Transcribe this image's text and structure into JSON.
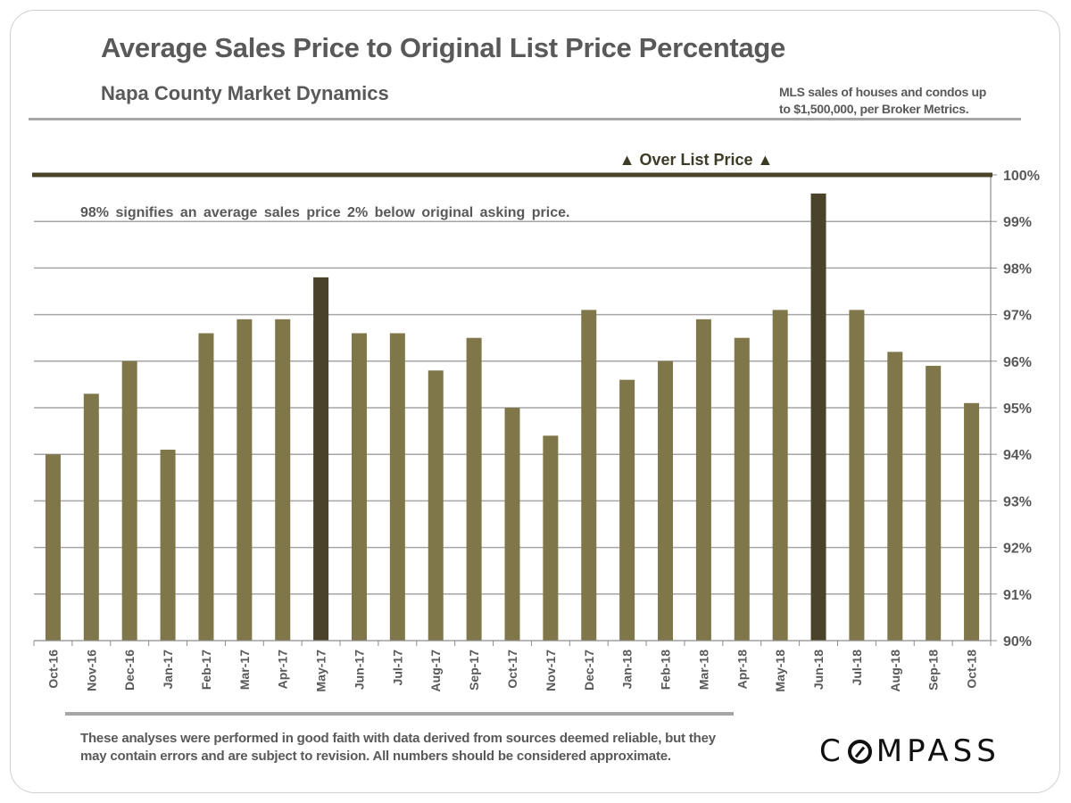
{
  "header": {
    "title": "Average Sales Price to Original List Price Percentage",
    "subtitle": "Napa County Market Dynamics",
    "source_line1": "MLS sales of houses and condos up",
    "source_line2": "to $1,500,000, per Broker Metrics."
  },
  "footer": {
    "disclaimer": "These analyses were performed in good faith with data derived from sources deemed reliable, but they may contain errors and are subject to revision. All numbers should be considered  approximate.",
    "logo_text_before": "C",
    "logo_text_after": "MPASS",
    "logo_icon": "compass-o-icon"
  },
  "colors": {
    "bar": "#7f774a",
    "bar_highlight": "#4a4329",
    "threshold_line": "#4a4329",
    "grid": "#a6a6a6",
    "text": "#595959"
  },
  "chart_data": {
    "type": "bar",
    "title": "Average Sales Price to Original List Price Percentage",
    "subtitle": "Napa County Market Dynamics",
    "xlabel": "",
    "ylabel": "",
    "ylim": [
      90,
      100
    ],
    "y_ticks": [
      90,
      91,
      92,
      93,
      94,
      95,
      96,
      97,
      98,
      99,
      100
    ],
    "y_tick_labels": [
      "90%",
      "91%",
      "92%",
      "93%",
      "94%",
      "95%",
      "96%",
      "97%",
      "98%",
      "99%",
      "100%"
    ],
    "y_axis_side": "right",
    "grid": true,
    "categories": [
      "Oct-16",
      "Nov-16",
      "Dec-16",
      "Jan-17",
      "Feb-17",
      "Mar-17",
      "Apr-17",
      "May-17",
      "Jun-17",
      "Jul-17",
      "Aug-17",
      "Sep-17",
      "Oct-17",
      "Nov-17",
      "Dec-17",
      "Jan-18",
      "Feb-18",
      "Mar-18",
      "Apr-18",
      "May-18",
      "Jun-18",
      "Jul-18",
      "Aug-18",
      "Sep-18",
      "Oct-18"
    ],
    "values": [
      94.0,
      95.3,
      96.0,
      94.1,
      96.6,
      96.9,
      96.9,
      97.8,
      96.6,
      96.6,
      95.8,
      96.5,
      95.0,
      94.4,
      97.1,
      95.6,
      96.0,
      96.9,
      96.5,
      97.1,
      99.6,
      97.1,
      96.2,
      95.9,
      95.1
    ],
    "highlighted": [
      "May-17",
      "Jun-18"
    ],
    "threshold": {
      "value": 100,
      "label": "▲ Over List Price ▲"
    },
    "annotation": "98% signifies  an average  sales  price  2% below  original  asking  price."
  }
}
